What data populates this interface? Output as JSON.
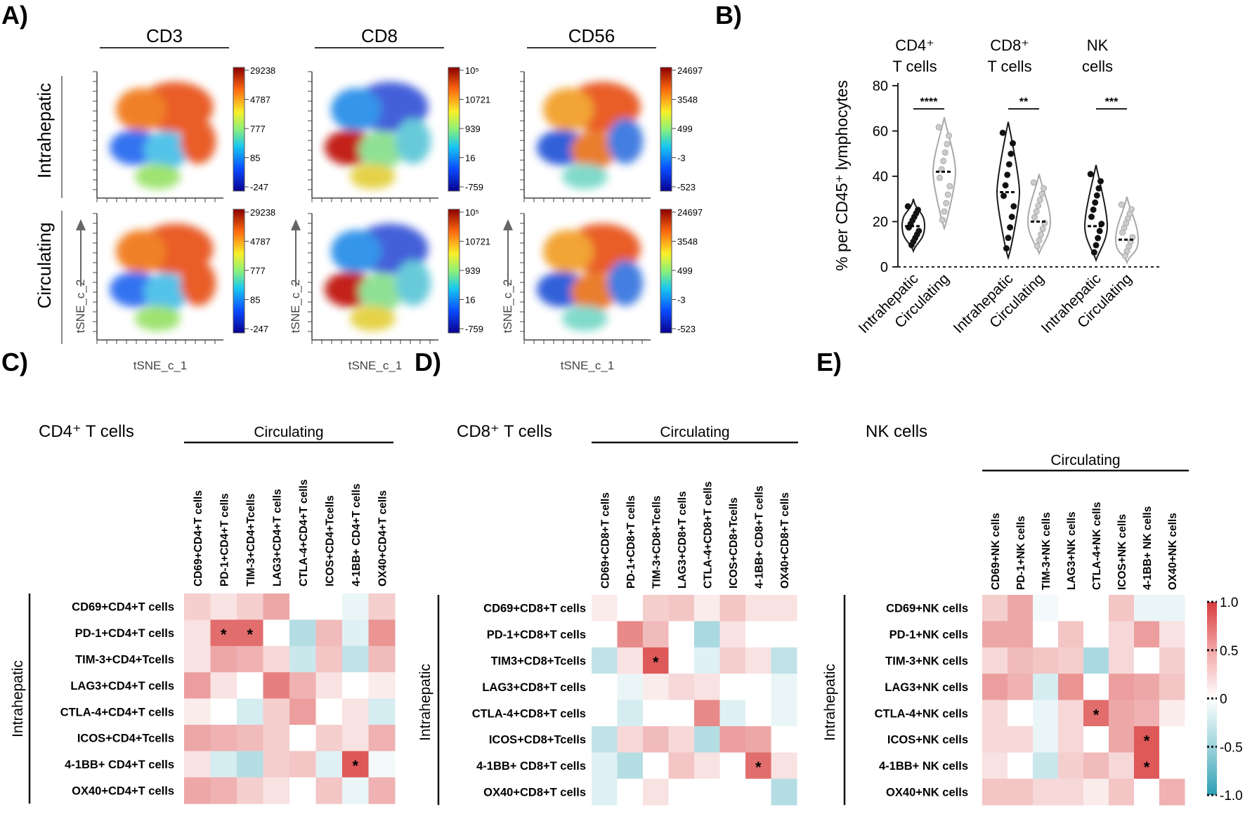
{
  "panel_labels": {
    "a": "A)",
    "b": "B)",
    "c": "C)",
    "d": "D)",
    "e": "E)"
  },
  "chart_data": [
    {
      "panel": "A",
      "type": "scatter",
      "title": "tSNE plots",
      "markers": [
        "CD3",
        "CD8",
        "CD56"
      ],
      "row_labels": [
        "Intrahepatic",
        "Circulating"
      ],
      "xlabel": "tSNE_c_1",
      "ylabel": "tSNE_c_2",
      "colorbar_ticks": [
        [
          "29238",
          "4787",
          "777",
          "85",
          "-247"
        ],
        [
          "10⁵",
          "10721",
          "939",
          "16",
          "-759"
        ],
        [
          "24697",
          "3548",
          "499",
          "-3",
          "-523"
        ]
      ]
    },
    {
      "panel": "B",
      "type": "violin",
      "ylabel": "% per CD45⁺ lymphocytes",
      "ylim": [
        0,
        80
      ],
      "yticks": [
        0,
        20,
        40,
        60,
        80
      ],
      "groups": [
        {
          "name_line1": "CD4⁺",
          "name_line2": "T cells",
          "significance": "****",
          "series": [
            {
              "name": "Intrahepatic",
              "median": 18,
              "min": 7,
              "max": 30
            },
            {
              "name": "Circulating",
              "median": 42,
              "min": 17,
              "max": 66
            }
          ]
        },
        {
          "name_line1": "CD8⁺",
          "name_line2": "T cells",
          "significance": "**",
          "series": [
            {
              "name": "Intrahepatic",
              "median": 33,
              "min": 4,
              "max": 64
            },
            {
              "name": "Circulating",
              "median": 20,
              "min": 6,
              "max": 41
            }
          ]
        },
        {
          "name_line1": "NK",
          "name_line2": "cells",
          "significance": "***",
          "series": [
            {
              "name": "Intrahepatic",
              "median": 18,
              "min": 3,
              "max": 45
            },
            {
              "name": "Circulating",
              "median": 12,
              "min": 2,
              "max": 31
            }
          ]
        }
      ],
      "x_tick_labels": [
        "Intrahepatic",
        "Circulating",
        "Intrahepatic",
        "Circulating",
        "Intrahepatic",
        "Circulating"
      ]
    },
    {
      "panel": "C",
      "type": "heatmap",
      "title": "CD4⁺ T cells",
      "col_group": "Circulating",
      "row_group": "Intrahepatic",
      "columns": [
        "CD69+CD4+T cells",
        "PD-1+CD4+T cells",
        "TIM-3+CD4+Tcells",
        "LAG3+CD4+T cells",
        "CTLA-4+CD4+T cells",
        "ICOS+CD4+Tcells",
        "4-1BB+ CD4+T cells",
        "OX40+CD4+T cells"
      ],
      "rows": [
        "CD69+CD4+T cells",
        "PD-1+CD4+T cells",
        "TIM-3+CD4+Tcells",
        "LAG3+CD4+T cells",
        "CTLA-4+CD4+T cells",
        "ICOS+CD4+Tcells",
        "4-1BB+ CD4+T cells",
        "OX40+CD4+T cells"
      ],
      "values": [
        [
          0.25,
          0.15,
          0.25,
          0.45,
          0.0,
          0.0,
          -0.1,
          0.25
        ],
        [
          0.15,
          0.75,
          0.75,
          0.0,
          -0.35,
          0.35,
          -0.15,
          0.55
        ],
        [
          0.15,
          0.45,
          0.4,
          0.2,
          -0.25,
          0.3,
          -0.3,
          0.35
        ],
        [
          0.5,
          0.15,
          0.0,
          0.65,
          0.4,
          0.15,
          0.0,
          0.1
        ],
        [
          0.1,
          0.0,
          -0.2,
          0.25,
          0.5,
          0.0,
          0.15,
          -0.2
        ],
        [
          0.45,
          0.4,
          0.35,
          0.25,
          0.0,
          0.25,
          0.15,
          0.4
        ],
        [
          0.15,
          -0.2,
          -0.35,
          0.25,
          0.3,
          -0.15,
          0.85,
          -0.05
        ],
        [
          0.45,
          0.4,
          0.25,
          0.15,
          0.0,
          0.3,
          -0.1,
          0.4
        ]
      ],
      "significant": [
        [
          1,
          1
        ],
        [
          1,
          2
        ],
        [
          6,
          6
        ]
      ],
      "sig_symbol": "*"
    },
    {
      "panel": "D",
      "type": "heatmap",
      "title": "CD8⁺ T cells",
      "col_group": "Circulating",
      "row_group": "Intrahepatic",
      "columns": [
        "CD69+CD8+T cells",
        "PD-1+CD8+T cells",
        "TIM-3+CD8+Tcells",
        "LAG3+CD8+T cells",
        "CTLA-4+CD8+T cells",
        "ICOS+CD8+Tcells",
        "4-1BB+ CD8+T cells",
        "OX40+CD8+T cells"
      ],
      "rows": [
        "CD69+CD8+T cells",
        "PD-1+CD8+T cells",
        "TIM3+CD8+Tcells",
        "LAG3+CD8+T cells",
        "CTLA-4+CD8+T cells",
        "ICOS+CD8+Tcells",
        "4-1BB+ CD8+T cells",
        "OX40+CD8+T cells"
      ],
      "values": [
        [
          0.1,
          0.0,
          0.25,
          0.3,
          0.1,
          0.3,
          0.15,
          0.15
        ],
        [
          0.0,
          0.6,
          0.35,
          0.0,
          -0.4,
          0.15,
          0.0,
          0.0
        ],
        [
          -0.3,
          0.15,
          0.85,
          0.0,
          -0.15,
          0.25,
          0.15,
          -0.3
        ],
        [
          0.0,
          -0.1,
          0.1,
          0.2,
          0.15,
          0.0,
          0.0,
          -0.1
        ],
        [
          0.0,
          -0.2,
          0.0,
          0.0,
          0.6,
          -0.15,
          0.0,
          -0.1
        ],
        [
          -0.3,
          0.2,
          0.35,
          0.2,
          -0.35,
          0.5,
          0.45,
          0.0
        ],
        [
          -0.15,
          -0.35,
          0.0,
          0.3,
          0.15,
          0.0,
          0.75,
          0.15
        ],
        [
          -0.15,
          0.0,
          0.15,
          0.0,
          0.0,
          0.0,
          0.0,
          -0.35
        ]
      ],
      "significant": [
        [
          2,
          2
        ],
        [
          6,
          6
        ]
      ],
      "sig_symbol": "*"
    },
    {
      "panel": "E",
      "type": "heatmap",
      "title": "NK cells",
      "col_group": "Circulating",
      "row_group": "Intrahepatic",
      "columns": [
        "CD69+NK cells",
        "PD-1+NK cells",
        "TIM-3+NK cells",
        "LAG3+NK cells",
        "CTLA-4+NK cells",
        "ICOS+NK cells",
        "4-1BB+ NK cells",
        "OX40+NK cells"
      ],
      "rows": [
        "CD69+NK cells",
        "PD-1+NK cells",
        "TIM-3+NK cells",
        "LAG3+NK cells",
        "CTLA-4+NK cells",
        "ICOS+NK cells",
        "4-1BB+ NK cells",
        "OX40+NK cells"
      ],
      "values": [
        [
          0.25,
          0.45,
          -0.05,
          0.0,
          0.0,
          0.3,
          -0.1,
          -0.1
        ],
        [
          0.45,
          0.45,
          0.0,
          0.3,
          0.0,
          0.2,
          0.5,
          0.15
        ],
        [
          0.2,
          0.35,
          0.3,
          0.25,
          -0.4,
          0.2,
          0.0,
          0.25
        ],
        [
          0.5,
          0.4,
          -0.2,
          0.55,
          0.0,
          0.5,
          0.45,
          0.3
        ],
        [
          0.2,
          0.0,
          -0.1,
          0.2,
          0.75,
          0.45,
          0.4,
          0.1
        ],
        [
          0.2,
          0.2,
          -0.1,
          0.2,
          0.0,
          0.45,
          0.85,
          0.0
        ],
        [
          0.15,
          0.0,
          -0.25,
          0.25,
          0.35,
          0.2,
          0.85,
          0.0
        ],
        [
          0.3,
          0.3,
          0.2,
          0.2,
          0.1,
          0.3,
          0.0,
          0.4
        ]
      ],
      "significant": [
        [
          4,
          4
        ],
        [
          5,
          6
        ],
        [
          6,
          6
        ]
      ],
      "sig_symbol": "*",
      "colorbar_ticks": [
        "1.0",
        "0.5",
        "0",
        "-0.5",
        "-1.0"
      ],
      "colorbar_range": [
        -1.0,
        1.0
      ]
    }
  ]
}
